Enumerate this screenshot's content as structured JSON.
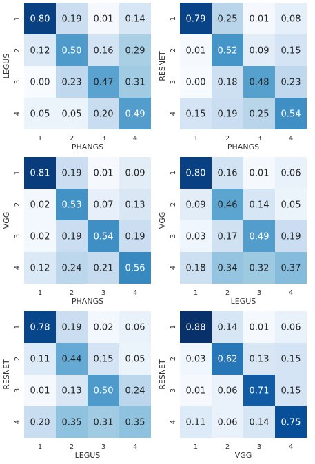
{
  "chart_data": [
    {
      "type": "heatmap",
      "xlabel": "PHANGS",
      "ylabel": "LEGUS",
      "x_ticks": [
        "1",
        "2",
        "3",
        "4"
      ],
      "y_ticks": [
        "1",
        "2",
        "3",
        "4"
      ],
      "values": [
        [
          "0.80",
          "0.19",
          "0.01",
          "0.14"
        ],
        [
          "0.12",
          "0.50",
          "0.16",
          "0.29"
        ],
        [
          "0.00",
          "0.23",
          "0.47",
          "0.31"
        ],
        [
          "0.05",
          "0.05",
          "0.20",
          "0.49"
        ]
      ]
    },
    {
      "type": "heatmap",
      "xlabel": "PHANGS",
      "ylabel": "RESNET",
      "x_ticks": [
        "1",
        "2",
        "3",
        "4"
      ],
      "y_ticks": [
        "1",
        "2",
        "3",
        "4"
      ],
      "values": [
        [
          "0.79",
          "0.25",
          "0.01",
          "0.08"
        ],
        [
          "0.01",
          "0.52",
          "0.09",
          "0.15"
        ],
        [
          "0.00",
          "0.18",
          "0.48",
          "0.23"
        ],
        [
          "0.15",
          "0.19",
          "0.25",
          "0.54"
        ]
      ]
    },
    {
      "type": "heatmap",
      "xlabel": "PHANGS",
      "ylabel": "VGG",
      "x_ticks": [
        "1",
        "2",
        "3",
        "4"
      ],
      "y_ticks": [
        "1",
        "2",
        "3",
        "4"
      ],
      "values": [
        [
          "0.81",
          "0.19",
          "0.01",
          "0.09"
        ],
        [
          "0.02",
          "0.53",
          "0.07",
          "0.13"
        ],
        [
          "0.02",
          "0.19",
          "0.54",
          "0.19"
        ],
        [
          "0.12",
          "0.24",
          "0.21",
          "0.56"
        ]
      ]
    },
    {
      "type": "heatmap",
      "xlabel": "LEGUS",
      "ylabel": "VGG",
      "x_ticks": [
        "1",
        "2",
        "3",
        "4"
      ],
      "y_ticks": [
        "1",
        "2",
        "3",
        "4"
      ],
      "values": [
        [
          "0.80",
          "0.16",
          "0.01",
          "0.06"
        ],
        [
          "0.09",
          "0.46",
          "0.14",
          "0.05"
        ],
        [
          "0.03",
          "0.17",
          "0.49",
          "0.19"
        ],
        [
          "0.18",
          "0.34",
          "0.32",
          "0.37"
        ]
      ]
    },
    {
      "type": "heatmap",
      "xlabel": "LEGUS",
      "ylabel": "RESNET",
      "x_ticks": [
        "1",
        "2",
        "3",
        "4"
      ],
      "y_ticks": [
        "1",
        "2",
        "3",
        "4"
      ],
      "values": [
        [
          "0.78",
          "0.19",
          "0.02",
          "0.06"
        ],
        [
          "0.11",
          "0.44",
          "0.15",
          "0.05"
        ],
        [
          "0.01",
          "0.13",
          "0.50",
          "0.24"
        ],
        [
          "0.20",
          "0.35",
          "0.31",
          "0.35"
        ]
      ]
    },
    {
      "type": "heatmap",
      "xlabel": "VGG",
      "ylabel": "RESNET",
      "x_ticks": [
        "1",
        "2",
        "3",
        "4"
      ],
      "y_ticks": [
        "1",
        "2",
        "3",
        "4"
      ],
      "values": [
        [
          "0.88",
          "0.14",
          "0.01",
          "0.06"
        ],
        [
          "0.03",
          "0.62",
          "0.13",
          "0.15"
        ],
        [
          "0.01",
          "0.06",
          "0.71",
          "0.15"
        ],
        [
          "0.11",
          "0.06",
          "0.14",
          "0.75"
        ]
      ]
    }
  ],
  "colormap": {
    "name": "Blues",
    "vmin": 0,
    "vmax": 0.85,
    "stops": [
      "#f7fbff",
      "#deebf7",
      "#c6dbef",
      "#9ecae1",
      "#6baed6",
      "#4292c6",
      "#2171b5",
      "#08519c",
      "#08306b"
    ]
  }
}
